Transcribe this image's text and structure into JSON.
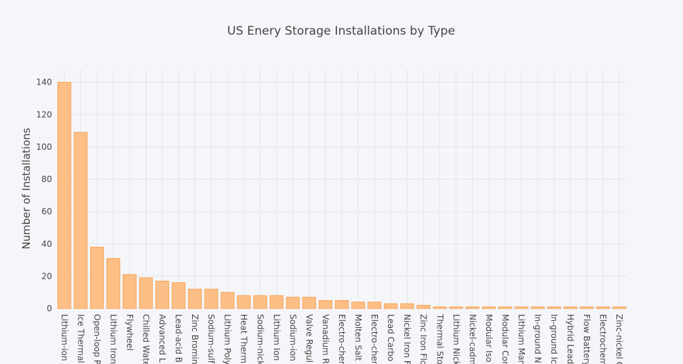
{
  "chart_data": {
    "type": "bar",
    "title": "US Enery Storage Installations by Type",
    "xlabel": "",
    "ylabel": "Number of Installations",
    "ylim": [
      0,
      148
    ],
    "yticks": [
      0,
      20,
      40,
      60,
      80,
      100,
      120,
      140
    ],
    "grid": true,
    "categories": [
      "Lithium-ion",
      "Ice Thermal",
      "Open-loop P",
      "Lithium Iron",
      "Flywheel",
      "Chilled Wate",
      "Advanced L",
      "Lead-acid B",
      "Zinc Bromin",
      "Sodium-sulf",
      "Lithium Poly",
      "Heat Therm",
      "Sodium-nick",
      "Lithium Ion",
      "Sodium-ion",
      "Valve Regul",
      "Vanadium R",
      "Electro-cher",
      "Molten Salt",
      "Electro-cher",
      "Lead Carbo",
      "Nickel Iron F",
      "Zinc Iron Flo",
      "Thermal Sto",
      "Lithium Nick",
      "Nickel-cadm",
      "Modular Iso",
      "Modular Cor",
      "Lithium Man",
      "In-ground N",
      "In-ground Ic",
      "Hybrid Lead",
      "Flow Battery",
      "Electrochem",
      "Zinc-nickel C"
    ],
    "values": [
      140,
      109,
      38,
      31,
      21,
      19,
      17,
      16,
      12,
      12,
      10,
      8,
      8,
      8,
      7,
      7,
      5,
      5,
      4,
      4,
      3,
      3,
      2,
      1,
      1,
      1,
      1,
      1,
      1,
      1,
      1,
      1,
      1,
      1,
      1
    ],
    "colors": {
      "bar_fill": "#fdbf85",
      "bar_stroke": "#f5a55a",
      "background": "#f5f6f9",
      "grid": "#e3e5ec"
    }
  }
}
